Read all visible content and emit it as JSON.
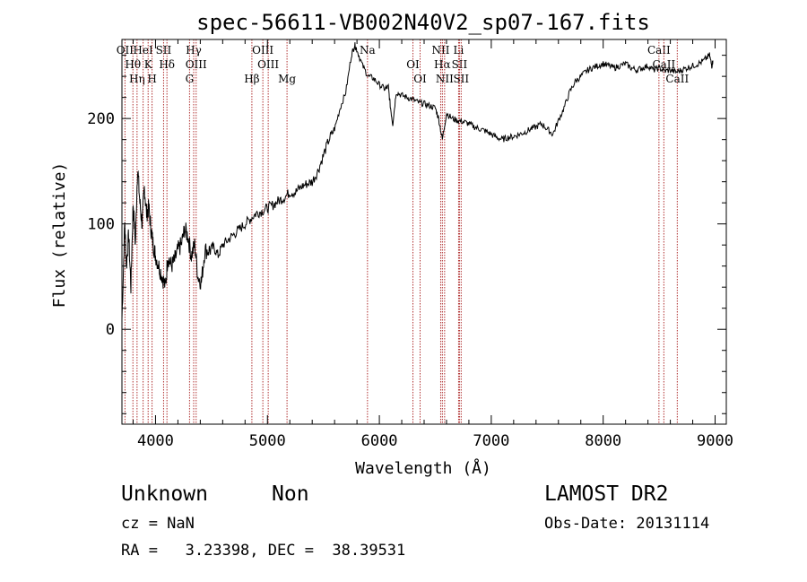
{
  "chart_data": {
    "type": "line",
    "title": "spec-56611-VB002N40V2_sp07-167.fits",
    "xlabel": "Wavelength (Å)",
    "ylabel": "Flux (relative)",
    "xlim": [
      3700,
      9100
    ],
    "ylim": [
      -90,
      275
    ],
    "x_ticks": [
      4000,
      5000,
      6000,
      7000,
      8000,
      9000
    ],
    "y_ticks": [
      0,
      100,
      200
    ],
    "grid": false,
    "series": [
      {
        "points": [
          [
            3700,
            10
          ],
          [
            3725,
            100
          ],
          [
            3740,
            60
          ],
          [
            3760,
            90
          ],
          [
            3780,
            40
          ],
          [
            3800,
            120
          ],
          [
            3820,
            80
          ],
          [
            3840,
            155
          ],
          [
            3860,
            120
          ],
          [
            3880,
            100
          ],
          [
            3900,
            135
          ],
          [
            3920,
            110
          ],
          [
            3940,
            115
          ],
          [
            3960,
            95
          ],
          [
            3980,
            80
          ],
          [
            4000,
            70
          ],
          [
            4030,
            60
          ],
          [
            4060,
            50
          ],
          [
            4090,
            40
          ],
          [
            4110,
            70
          ],
          [
            4140,
            60
          ],
          [
            4170,
            65
          ],
          [
            4200,
            75
          ],
          [
            4230,
            80
          ],
          [
            4260,
            95
          ],
          [
            4290,
            88
          ],
          [
            4320,
            70
          ],
          [
            4350,
            80
          ],
          [
            4380,
            50
          ],
          [
            4410,
            45
          ],
          [
            4440,
            75
          ],
          [
            4480,
            75
          ],
          [
            4520,
            78
          ],
          [
            4560,
            70
          ],
          [
            4600,
            80
          ],
          [
            4650,
            85
          ],
          [
            4700,
            90
          ],
          [
            4750,
            95
          ],
          [
            4800,
            100
          ],
          [
            4850,
            105
          ],
          [
            4900,
            110
          ],
          [
            4950,
            112
          ],
          [
            5000,
            115
          ],
          [
            5050,
            118
          ],
          [
            5100,
            122
          ],
          [
            5150,
            125
          ],
          [
            5200,
            130
          ],
          [
            5250,
            130
          ],
          [
            5300,
            135
          ],
          [
            5350,
            138
          ],
          [
            5400,
            140
          ],
          [
            5450,
            150
          ],
          [
            5500,
            165
          ],
          [
            5550,
            180
          ],
          [
            5600,
            190
          ],
          [
            5650,
            210
          ],
          [
            5700,
            225
          ],
          [
            5750,
            260
          ],
          [
            5780,
            270
          ],
          [
            5800,
            265
          ],
          [
            5850,
            250
          ],
          [
            5900,
            240
          ],
          [
            5950,
            238
          ],
          [
            6000,
            232
          ],
          [
            6050,
            228
          ],
          [
            6080,
            230
          ],
          [
            6100,
            210
          ],
          [
            6120,
            195
          ],
          [
            6150,
            225
          ],
          [
            6200,
            222
          ],
          [
            6250,
            220
          ],
          [
            6300,
            218
          ],
          [
            6350,
            215
          ],
          [
            6400,
            214
          ],
          [
            6450,
            212
          ],
          [
            6500,
            210
          ],
          [
            6530,
            200
          ],
          [
            6563,
            180
          ],
          [
            6600,
            205
          ],
          [
            6650,
            200
          ],
          [
            6700,
            198
          ],
          [
            6750,
            197
          ],
          [
            6800,
            195
          ],
          [
            6850,
            192
          ],
          [
            6900,
            190
          ],
          [
            6950,
            188
          ],
          [
            7000,
            185
          ],
          [
            7050,
            182
          ],
          [
            7100,
            180
          ],
          [
            7150,
            182
          ],
          [
            7200,
            183
          ],
          [
            7250,
            185
          ],
          [
            7300,
            187
          ],
          [
            7350,
            190
          ],
          [
            7400,
            192
          ],
          [
            7450,
            195
          ],
          [
            7500,
            190
          ],
          [
            7550,
            185
          ],
          [
            7600,
            198
          ],
          [
            7650,
            210
          ],
          [
            7700,
            225
          ],
          [
            7750,
            235
          ],
          [
            7800,
            240
          ],
          [
            7850,
            245
          ],
          [
            7900,
            248
          ],
          [
            7950,
            250
          ],
          [
            8000,
            252
          ],
          [
            8050,
            250
          ],
          [
            8100,
            248
          ],
          [
            8150,
            250
          ],
          [
            8200,
            252
          ],
          [
            8250,
            248
          ],
          [
            8300,
            246
          ],
          [
            8350,
            248
          ],
          [
            8400,
            250
          ],
          [
            8450,
            246
          ],
          [
            8500,
            248
          ],
          [
            8550,
            245
          ],
          [
            8600,
            246
          ],
          [
            8650,
            244
          ],
          [
            8700,
            246
          ],
          [
            8750,
            248
          ],
          [
            8800,
            250
          ],
          [
            8850,
            252
          ],
          [
            8900,
            255
          ],
          [
            8950,
            260
          ],
          [
            8970,
            250
          ],
          [
            8980,
            255
          ]
        ]
      }
    ],
    "lines": [
      {
        "x": 3727,
        "labels": [
          "OII"
        ]
      },
      {
        "x": 3798,
        "labels": [
          "Hθ"
        ]
      },
      {
        "x": 3835,
        "labels": [
          "Hη"
        ]
      },
      {
        "x": 3889,
        "labels": [
          "HeI"
        ]
      },
      {
        "x": 3934,
        "labels": [
          "K"
        ]
      },
      {
        "x": 3969,
        "labels": [
          "H"
        ]
      },
      {
        "x": 4072,
        "labels": [
          "SII"
        ]
      },
      {
        "x": 4102,
        "labels": [
          "Hδ"
        ]
      },
      {
        "x": 4304,
        "labels": [
          "G"
        ]
      },
      {
        "x": 4341,
        "labels": [
          "Hγ"
        ]
      },
      {
        "x": 4363,
        "labels": [
          "OIII"
        ]
      },
      {
        "x": 4861,
        "labels": [
          "Hβ"
        ]
      },
      {
        "x": 4959,
        "labels": [
          "OIII"
        ]
      },
      {
        "x": 5007,
        "labels": [
          "OIII"
        ]
      },
      {
        "x": 5175,
        "labels": [
          "Mg"
        ]
      },
      {
        "x": 5894,
        "labels": [
          "Na"
        ]
      },
      {
        "x": 6300,
        "labels": [
          "OI"
        ]
      },
      {
        "x": 6364,
        "labels": [
          "OI"
        ]
      },
      {
        "x": 6548,
        "labels": [
          "NII"
        ]
      },
      {
        "x": 6563,
        "labels": [
          "Hα"
        ]
      },
      {
        "x": 6583,
        "labels": [
          "NII"
        ]
      },
      {
        "x": 6708,
        "labels": [
          "Li"
        ]
      },
      {
        "x": 6716,
        "labels": [
          "SII"
        ]
      },
      {
        "x": 6731,
        "labels": [
          "SII"
        ]
      },
      {
        "x": 8498,
        "labels": [
          "CaII"
        ]
      },
      {
        "x": 8542,
        "labels": [
          "CaII"
        ]
      },
      {
        "x": 8662,
        "labels": [
          "CaII"
        ]
      }
    ],
    "colors": {
      "spectrum": "#000000",
      "lines": "#b03030",
      "frame": "#000000"
    }
  },
  "info": {
    "class": "Unknown",
    "subclass": "Non",
    "survey": "LAMOST DR2",
    "cz": "cz = NaN",
    "obs_date": "Obs-Date: 20131114",
    "coords": "RA =   3.23398, DEC =  38.39531"
  }
}
